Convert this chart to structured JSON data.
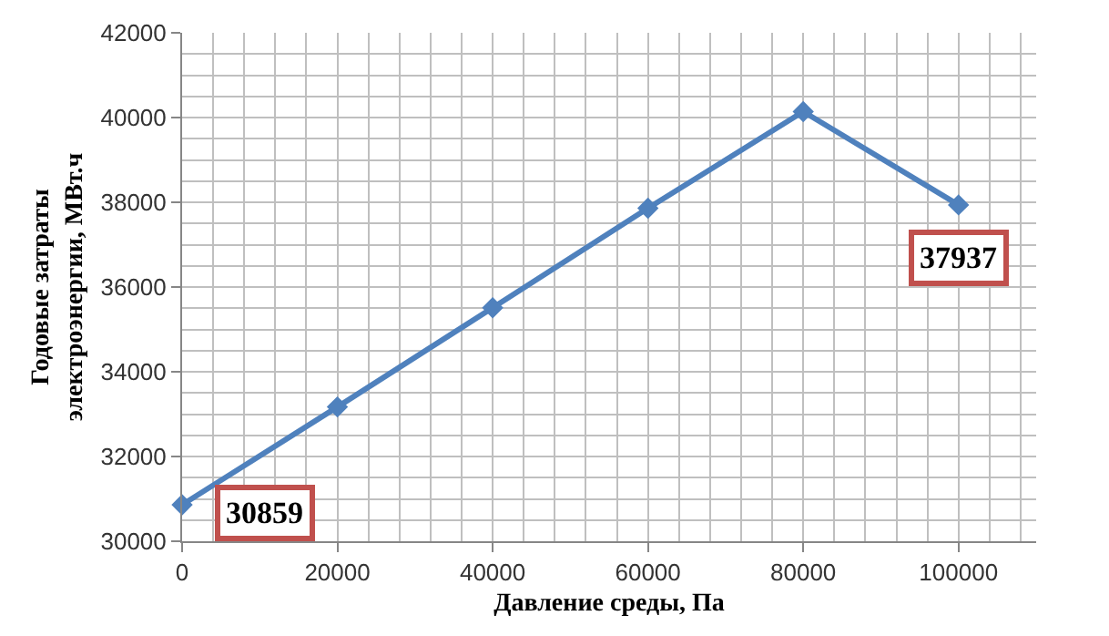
{
  "chart_data": {
    "type": "line",
    "xlabel": "Давление среды, Па",
    "ylabel": "Годовые затраты\nэлектроэнергии, МВт.ч",
    "x": [
      0,
      20000,
      40000,
      60000,
      80000,
      100000
    ],
    "series": [
      {
        "color": "#4f81bd",
        "values": [
          30859,
          33170,
          35510,
          37860,
          40140,
          37937
        ],
        "value_labels": [
          "30859",
          null,
          null,
          null,
          null,
          "37937"
        ]
      }
    ],
    "xlim": [
      0,
      110000
    ],
    "xticks": [
      0,
      20000,
      40000,
      60000,
      80000,
      100000
    ],
    "ylim": [
      30000,
      42000
    ],
    "yticks": [
      30000,
      32000,
      34000,
      36000,
      38000,
      40000,
      42000
    ],
    "grid": true,
    "marker": "diamond",
    "line_style": "solid"
  }
}
